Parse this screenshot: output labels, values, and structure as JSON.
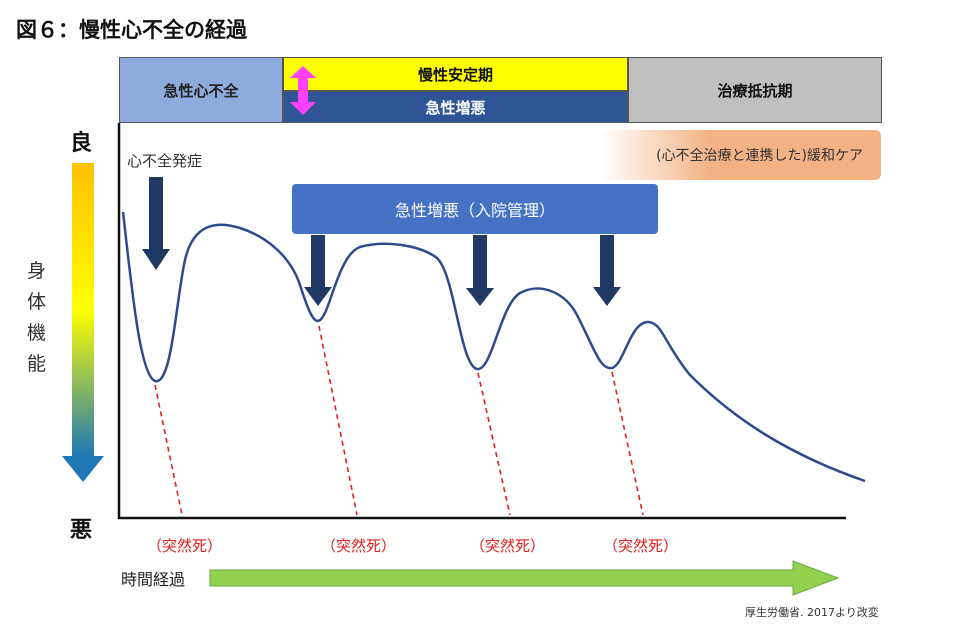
{
  "title": "図６：慢性心不全の経過",
  "phases": {
    "acute_hf": "急性心不全",
    "chronic_stable": "慢性安定期",
    "acute_exacerbation": "急性増悪",
    "refractory": "治療抵抗期"
  },
  "palliative": "(心不全治療と連携した)緩和ケア",
  "onset": "心不全発症",
  "exacerbation_box": "急性増悪（入院管理）",
  "y_axis": {
    "good": "良",
    "bad": "悪",
    "label": [
      "身",
      "体",
      "機",
      "能"
    ]
  },
  "sudden_death": [
    "（突然死）",
    "（突然死）",
    "（突然死）",
    "（突然死）"
  ],
  "time_label": "時間経過",
  "source": "厚生労働省. 2017より改変",
  "colors": {
    "acute_hf_bg": "#8faadc",
    "chronic_stable_bg": "#ffff00",
    "acute_exacerbation_bg": "#2f5597",
    "refractory_bg": "#bfbfbf",
    "curve": "#2e4a8c",
    "down_arrow": "#1f3864",
    "magenta_arrow": "#ff40ff",
    "sudden_death": "#e02020",
    "time_arrow": "#92d050",
    "palliative_bg": "#f4b183",
    "exacerbation_box_bg": "#4472c4"
  }
}
